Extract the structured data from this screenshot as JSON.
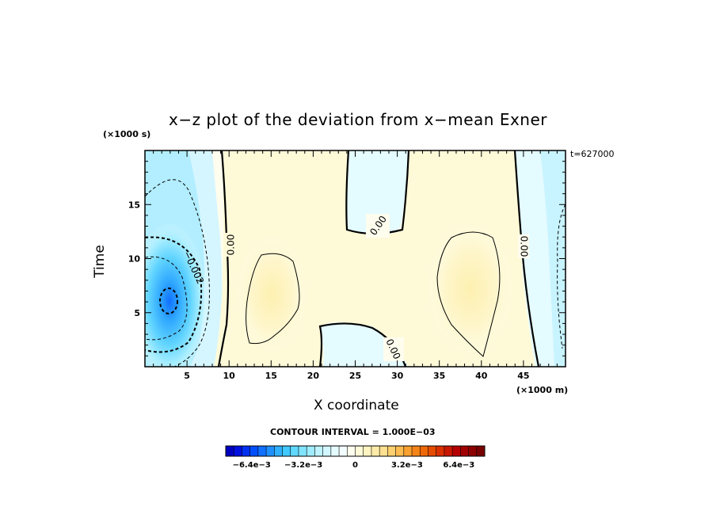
{
  "chart_data": {
    "type": "contour",
    "title": "x−z plot of the deviation from x−mean Exner",
    "xlabel": "X coordinate",
    "ylabel": "Time",
    "x_unit": "(×1000 m)",
    "y_unit": "(×1000 s)",
    "xlim": [
      0,
      50
    ],
    "ylim": [
      0,
      20
    ],
    "x_ticks": [
      5,
      10,
      15,
      20,
      25,
      30,
      35,
      40,
      45
    ],
    "y_ticks": [
      5,
      10,
      15
    ],
    "time_label": "t=627000",
    "contour_interval_label": "CONTOUR INTERVAL = 1.000E−03",
    "contour_interval": 0.001,
    "contour_labels": [
      "0.00",
      "0.00",
      "0.00",
      "0.00",
      "−0.002"
    ],
    "field_features": [
      {
        "kind": "minimum",
        "x": 3,
        "y": 6,
        "value": -0.005
      },
      {
        "kind": "maximum",
        "x": 15,
        "y": 7,
        "value": 0.0012
      },
      {
        "kind": "maximum",
        "x": 38,
        "y": 7,
        "value": 0.0012
      },
      {
        "kind": "minimum",
        "x": 28,
        "y": 17,
        "value": -0.0008
      },
      {
        "kind": "minimum",
        "x": 26,
        "y": 2,
        "value": -0.0006
      }
    ],
    "colorbar": {
      "tick_labels": [
        "−6.4e−3",
        "−3.2e−3",
        "0",
        "3.2e−3",
        "6.4e−3"
      ],
      "tick_values": [
        -0.0064,
        -0.0032,
        0,
        0.0032,
        0.0064
      ],
      "range": [
        -0.008,
        0.008
      ],
      "colors": [
        "#0000c0",
        "#0010e0",
        "#0030f0",
        "#0050ff",
        "#1070ff",
        "#2090ff",
        "#30b0ff",
        "#40c8ff",
        "#60d8ff",
        "#80e4ff",
        "#a0ecff",
        "#bff3ff",
        "#d2f7ff",
        "#e4fbff",
        "#f2fdff",
        "#fefeee",
        "#fefad8",
        "#fef4c0",
        "#fdeca8",
        "#fde090",
        "#fdd070",
        "#fcbc50",
        "#f9a030",
        "#f48418",
        "#ef6808",
        "#e54c00",
        "#d93000",
        "#c81800",
        "#b40000",
        "#a00000",
        "#8c0000",
        "#780000"
      ]
    }
  }
}
